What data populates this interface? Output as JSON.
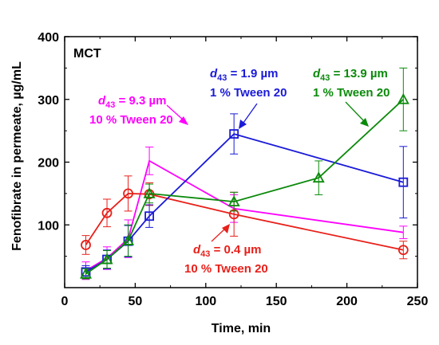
{
  "chart_data": {
    "type": "line",
    "xlabel": "Time, min",
    "ylabel": "Fenofibrate in permeate, µg/mL",
    "xlim": [
      0,
      250
    ],
    "ylim": [
      0,
      400
    ],
    "x_ticks": [
      0,
      50,
      100,
      150,
      200,
      250
    ],
    "y_ticks": [
      100,
      200,
      300,
      400
    ],
    "x_tick_labels": [
      "0",
      "50",
      "100",
      "150",
      "200",
      "250"
    ],
    "y_tick_labels": [
      "100",
      "200",
      "300",
      "400"
    ],
    "grid": false,
    "panel_label": "MCT",
    "series": [
      {
        "color": "#ff00ff",
        "marker": "none",
        "x": [
          15,
          30,
          45,
          60,
          120,
          240
        ],
        "y": [
          27,
          47,
          78,
          202,
          126,
          88
        ],
        "err": [
          14,
          18,
          30,
          22,
          22,
          10
        ]
      },
      {
        "color": "#e8201a",
        "marker": "circle",
        "x": [
          15,
          30,
          45,
          60,
          120,
          240
        ],
        "y": [
          68,
          119,
          150,
          149,
          117,
          60
        ],
        "err": [
          15,
          22,
          28,
          18,
          35,
          14
        ]
      },
      {
        "color": "#1a1ad8",
        "marker": "square",
        "x": [
          15,
          30,
          45,
          60,
          120,
          240
        ],
        "y": [
          25,
          45,
          74,
          114,
          245,
          168
        ],
        "err": [
          10,
          15,
          25,
          18,
          32,
          57
        ]
      },
      {
        "color": "#0b8a0b",
        "marker": "triangle",
        "x": [
          15,
          30,
          45,
          60,
          120,
          180,
          240
        ],
        "y": [
          22,
          45,
          75,
          150,
          137,
          175,
          300
        ],
        "err": [
          8,
          14,
          25,
          15,
          15,
          27,
          50
        ]
      }
    ],
    "annotations": [
      {
        "color": "#ff00ff",
        "d_value": "= 9.3 µm",
        "tween": "10 % Tween 20"
      },
      {
        "color": "#1a1ad8",
        "d_value": "= 1.9 µm",
        "tween": "1 % Tween 20"
      },
      {
        "color": "#0b8a0b",
        "d_value": "= 13.9 µm",
        "tween": "1 % Tween 20"
      },
      {
        "color": "#e8201a",
        "d_value": "= 0.4 µm",
        "tween": "10 % Tween 20"
      }
    ]
  }
}
